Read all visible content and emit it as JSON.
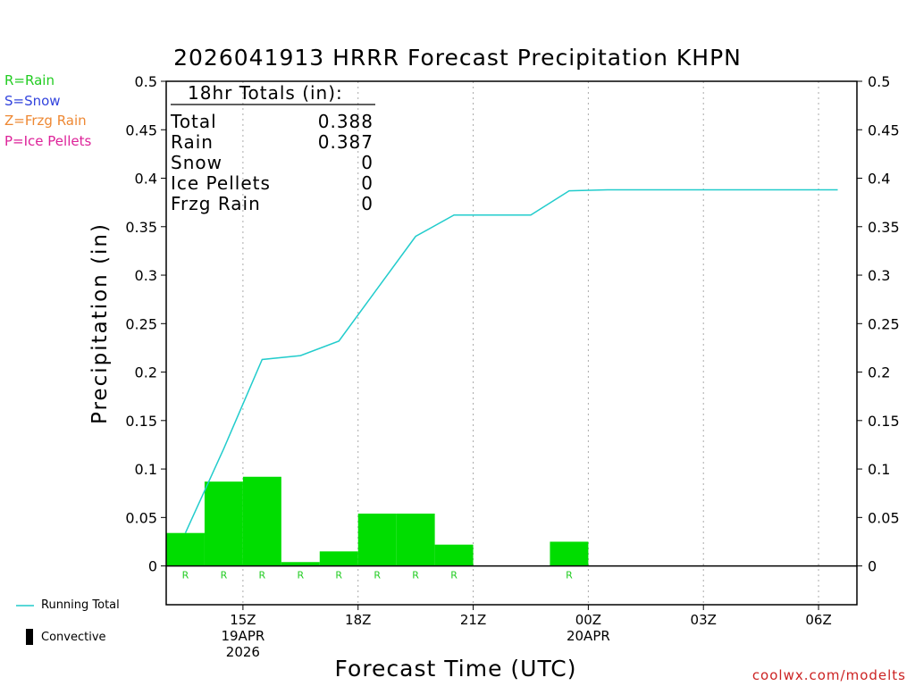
{
  "chart_data": {
    "type": "bar",
    "title": "2026041913 HRRR Forecast Precipitation KHPN",
    "xlabel": "Forecast Time (UTC)",
    "ylabel": "Precipitation (in)",
    "ylim": [
      -0.04,
      0.5
    ],
    "y_ticks": [
      {
        "value": 0.5,
        "label": "0.5"
      },
      {
        "value": 0.45,
        "label": "0.45"
      },
      {
        "value": 0.4,
        "label": "0.4"
      },
      {
        "value": 0.35,
        "label": "0.35"
      },
      {
        "value": 0.3,
        "label": "0.3"
      },
      {
        "value": 0.25,
        "label": "0.25"
      },
      {
        "value": 0.2,
        "label": "0.2"
      },
      {
        "value": 0.15,
        "label": "0.15"
      },
      {
        "value": 0.1,
        "label": "0.1"
      },
      {
        "value": 0.05,
        "label": "0.05"
      },
      {
        "value": 0,
        "label": "0"
      }
    ],
    "xlim_hours": [
      13,
      31
    ],
    "x_ticks": [
      {
        "hour": 15,
        "lines": [
          "15Z",
          "19APR",
          "2026"
        ]
      },
      {
        "hour": 18,
        "lines": [
          "18Z"
        ]
      },
      {
        "hour": 21,
        "lines": [
          "21Z"
        ]
      },
      {
        "hour": 24,
        "lines": [
          "00Z",
          "20APR"
        ]
      },
      {
        "hour": 27,
        "lines": [
          "03Z"
        ]
      },
      {
        "hour": 30,
        "lines": [
          "06Z"
        ]
      }
    ],
    "grid": "vertical dotted",
    "hours": [
      14,
      15,
      16,
      17,
      18,
      19,
      20,
      21,
      22,
      23,
      24,
      25,
      26,
      27,
      28,
      29,
      30,
      31
    ],
    "series": [
      {
        "name": "Hourly Precipitation",
        "kind": "bar",
        "color": "#00dd00",
        "values": [
          0.034,
          0.087,
          0.092,
          0.004,
          0.015,
          0.054,
          0.054,
          0.022,
          0,
          0,
          0.025,
          0,
          0,
          0,
          0,
          0,
          0,
          0
        ]
      },
      {
        "name": "Running Total",
        "kind": "line",
        "color": "#22cccc",
        "values": [
          0.034,
          0.121,
          0.213,
          0.217,
          0.232,
          0.286,
          0.34,
          0.362,
          0.362,
          0.362,
          0.387,
          0.388,
          0.388,
          0.388,
          0.388,
          0.388,
          0.388,
          0.388
        ]
      }
    ],
    "ptype_markers": [
      {
        "hour": 14,
        "code": "R"
      },
      {
        "hour": 15,
        "code": "R"
      },
      {
        "hour": 16,
        "code": "R"
      },
      {
        "hour": 17,
        "code": "R"
      },
      {
        "hour": 18,
        "code": "R"
      },
      {
        "hour": 19,
        "code": "R"
      },
      {
        "hour": 20,
        "code": "R"
      },
      {
        "hour": 21,
        "code": "R"
      },
      {
        "hour": 24,
        "code": "R"
      }
    ],
    "totals_box": {
      "heading": "18hr Totals (in):",
      "rows": [
        {
          "label": "Total",
          "value": "0.388"
        },
        {
          "label": "Rain",
          "value": "0.387"
        },
        {
          "label": "Snow",
          "value": "0"
        },
        {
          "label": "Ice Pellets",
          "value": "0"
        },
        {
          "label": "Frzg Rain",
          "value": "0"
        }
      ]
    }
  },
  "ptype_legend": [
    {
      "text": "R=Rain",
      "color": "#22cc22"
    },
    {
      "text": "S=Snow",
      "color": "#3344dd"
    },
    {
      "text": "Z=Frzg Rain",
      "color": "#ee8833"
    },
    {
      "text": "P=Ice Pellets",
      "color": "#dd2299"
    }
  ],
  "bottom_legend": {
    "running_total": "Running Total",
    "convective": "Convective"
  },
  "credit": "coolwx.com/modelts",
  "colors": {
    "rain_bar": "#00dd00",
    "running_total": "#22cccc",
    "rain_label": "#22cc22",
    "credit": "#cc2222"
  }
}
